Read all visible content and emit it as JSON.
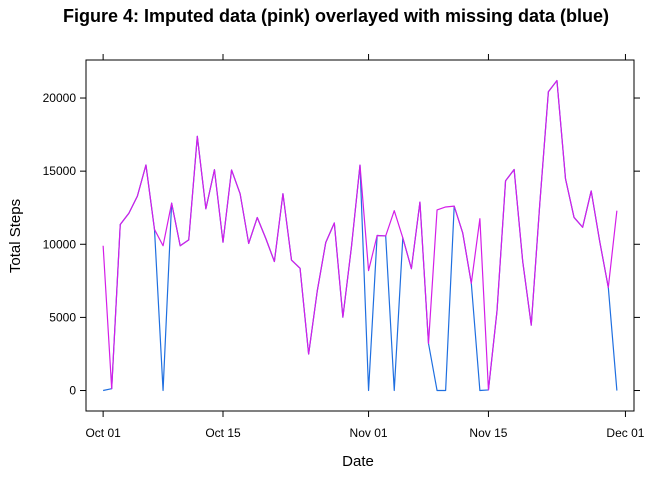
{
  "chart_data": {
    "type": "line",
    "title": "Figure 4: Imputed data (pink) overlayed with missing data (blue)",
    "xlabel": "Date",
    "ylabel": "Total Steps",
    "x_ticks": [
      "Oct 01",
      "Oct 15",
      "Nov 01",
      "Nov 15",
      "Dec 01"
    ],
    "y_ticks": [
      0,
      5000,
      10000,
      15000,
      20000
    ],
    "xlim": [
      "2012-09-29",
      "2012-12-02"
    ],
    "ylim": [
      -1400,
      22600
    ],
    "grid": false,
    "dates": [
      "2012-10-01",
      "2012-10-02",
      "2012-10-03",
      "2012-10-04",
      "2012-10-05",
      "2012-10-06",
      "2012-10-07",
      "2012-10-08",
      "2012-10-09",
      "2012-10-10",
      "2012-10-11",
      "2012-10-12",
      "2012-10-13",
      "2012-10-14",
      "2012-10-15",
      "2012-10-16",
      "2012-10-17",
      "2012-10-18",
      "2012-10-19",
      "2012-10-20",
      "2012-10-21",
      "2012-10-22",
      "2012-10-23",
      "2012-10-24",
      "2012-10-25",
      "2012-10-26",
      "2012-10-27",
      "2012-10-28",
      "2012-10-29",
      "2012-10-30",
      "2012-10-31",
      "2012-11-01",
      "2012-11-02",
      "2012-11-03",
      "2012-11-04",
      "2012-11-05",
      "2012-11-06",
      "2012-11-07",
      "2012-11-08",
      "2012-11-09",
      "2012-11-10",
      "2012-11-11",
      "2012-11-12",
      "2012-11-13",
      "2012-11-14",
      "2012-11-15",
      "2012-11-16",
      "2012-11-17",
      "2012-11-18",
      "2012-11-19",
      "2012-11-20",
      "2012-11-21",
      "2012-11-22",
      "2012-11-23",
      "2012-11-24",
      "2012-11-25",
      "2012-11-26",
      "2012-11-27",
      "2012-11-28",
      "2012-11-29",
      "2012-11-30"
    ],
    "series": [
      {
        "color": "#1f6fe0",
        "values": [
          0,
          126,
          11352,
          12116,
          13294,
          15420,
          11015,
          0,
          12811,
          9900,
          10304,
          17382,
          12426,
          15098,
          10139,
          15084,
          13452,
          10056,
          11829,
          10395,
          8821,
          13460,
          8918,
          8355,
          2492,
          6778,
          10119,
          11458,
          5018,
          9819,
          15414,
          0,
          10600,
          10571,
          0,
          10439,
          8334,
          12883,
          3219,
          0,
          0,
          12608,
          10765,
          7336,
          0,
          41,
          5441,
          14339,
          15110,
          8841,
          4472,
          12787,
          20427,
          21194,
          14478,
          11834,
          11162,
          13646,
          10183,
          7047,
          0
        ]
      },
      {
        "color": "#d41ee8",
        "values": [
          9900,
          126,
          11352,
          12116,
          13294,
          15420,
          11015,
          9900,
          12811,
          9900,
          10304,
          17382,
          12426,
          15098,
          10139,
          15084,
          13452,
          10056,
          11829,
          10395,
          8821,
          13460,
          8918,
          8355,
          2492,
          6778,
          10119,
          11458,
          5018,
          9819,
          15414,
          8200,
          10600,
          10571,
          12300,
          10439,
          8334,
          12883,
          3219,
          12350,
          12550,
          12608,
          10765,
          7336,
          11750,
          41,
          5441,
          14339,
          15110,
          8841,
          4472,
          12787,
          20427,
          21194,
          14478,
          11834,
          11162,
          13646,
          10183,
          7047,
          12300
        ]
      }
    ]
  }
}
